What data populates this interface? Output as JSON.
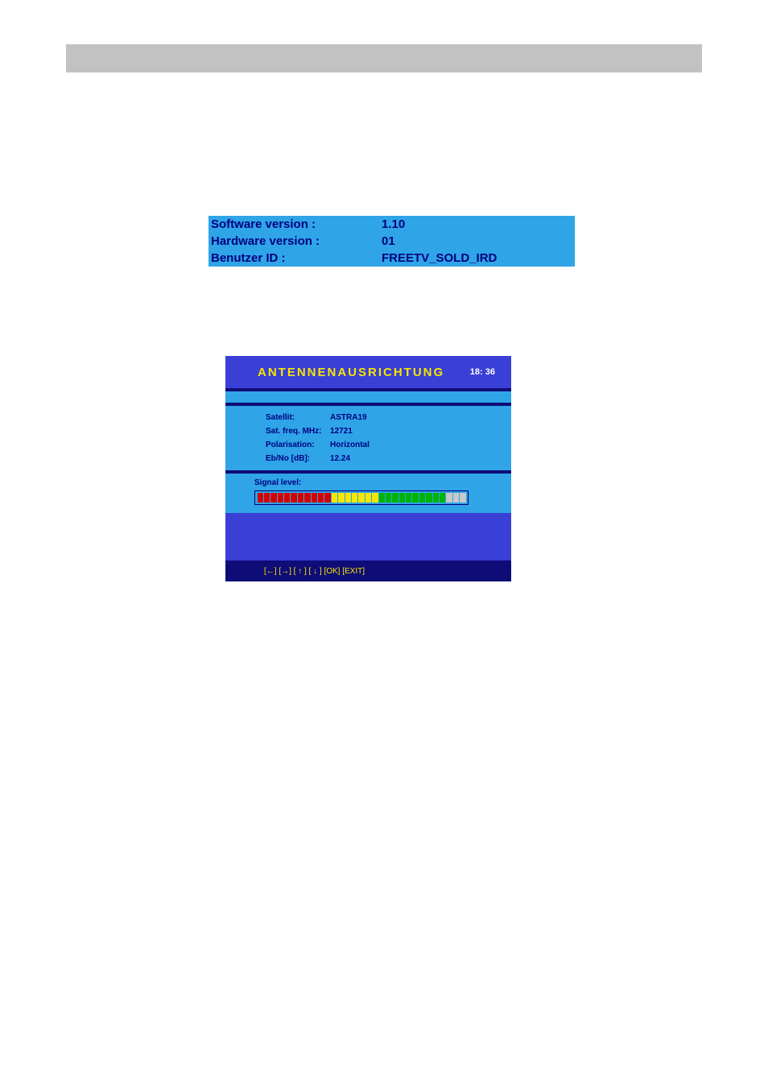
{
  "colors": {
    "grey_bar": "#c2c2c2",
    "light_blue": "#2fa4e7",
    "dark_blue_text": "#000080",
    "screen_bg": "#3a3fd6",
    "screen_dark": "#0e0c77",
    "yellow_text": "#f7e600",
    "white": "#ffffff"
  },
  "version_table": {
    "rows": [
      {
        "label": "Software version :",
        "value": "1.10"
      },
      {
        "label": "Hardware version :",
        "value": "01"
      },
      {
        "label": "Benutzer ID :",
        "value": "FREETV_SOLD_IRD"
      }
    ]
  },
  "antenna": {
    "title": "ANTENNENAUSRICHTUNG",
    "time": "18: 36",
    "rows": [
      {
        "label": "Satellit:",
        "value": "ASTRA19"
      },
      {
        "label": "Sat. freq. MHz:",
        "value": "12721"
      },
      {
        "label": "Polarisation:",
        "value": "Horizontal"
      },
      {
        "label": "Eb/No  [dB]:",
        "value": "12.24"
      }
    ],
    "signal_label": "Signal level:",
    "signal_segments": [
      "#d40000",
      "#d40000",
      "#d40000",
      "#d40000",
      "#d40000",
      "#d40000",
      "#d40000",
      "#d40000",
      "#d40000",
      "#d40000",
      "#d40000",
      "#f7e600",
      "#f7e600",
      "#f7e600",
      "#f7e600",
      "#f7e600",
      "#f7e600",
      "#f7e600",
      "#00b400",
      "#00b400",
      "#00b400",
      "#00b400",
      "#00b400",
      "#00b400",
      "#00b400",
      "#00b400",
      "#00b400",
      "#00b400",
      "#c8c8c8",
      "#c8c8c8",
      "#c8c8c8"
    ],
    "footer": "[←] [→] [ ↑ ] [ ↓ ] [OK] [EXIT]"
  }
}
